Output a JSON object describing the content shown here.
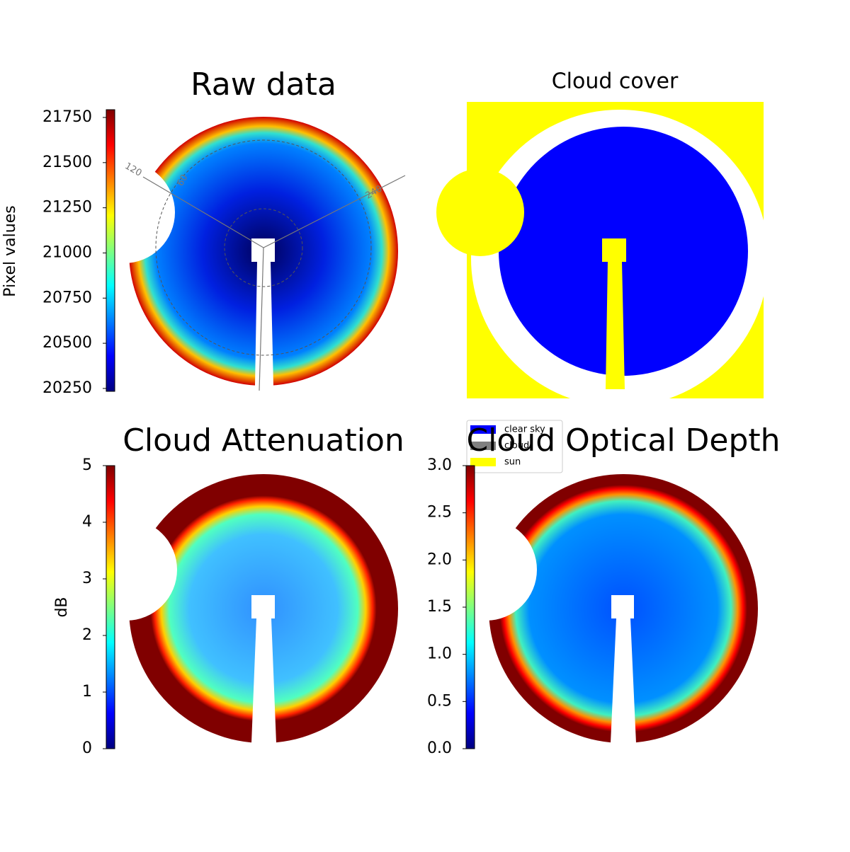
{
  "chart_data": [
    {
      "type": "image",
      "title": "Raw data",
      "colorbar_label": "Pixel values",
      "colormap": "jet",
      "ylim": [
        20234,
        21793
      ],
      "yticks": [
        20250,
        20500,
        20750,
        21000,
        21250,
        21500,
        21750
      ],
      "annotations": [
        "120",
        "60",
        "240"
      ]
    },
    {
      "type": "classification",
      "title": "Cloud cover",
      "legend": [
        {
          "name": "clear sky",
          "color": "#0000ff"
        },
        {
          "name": "cloud",
          "color": "#808080"
        },
        {
          "name": "sun",
          "color": "#ffff00"
        }
      ]
    },
    {
      "type": "image",
      "title": "Cloud Attenuation",
      "colorbar_label": "dB",
      "colormap": "jet",
      "ylim": [
        0,
        5
      ],
      "yticks": [
        0,
        1,
        2,
        3,
        4,
        5
      ]
    },
    {
      "type": "image",
      "title": "Cloud Optical Depth",
      "colormap": "jet",
      "ylim": [
        0,
        3
      ],
      "yticks": [
        {
          "value": 0,
          "label": "0.0"
        },
        0.5,
        {
          "value": 1,
          "label": "1.0"
        },
        1.5,
        {
          "value": 2,
          "label": "2.0"
        },
        2.5,
        {
          "value": 3,
          "label": "3.0"
        }
      ]
    }
  ]
}
